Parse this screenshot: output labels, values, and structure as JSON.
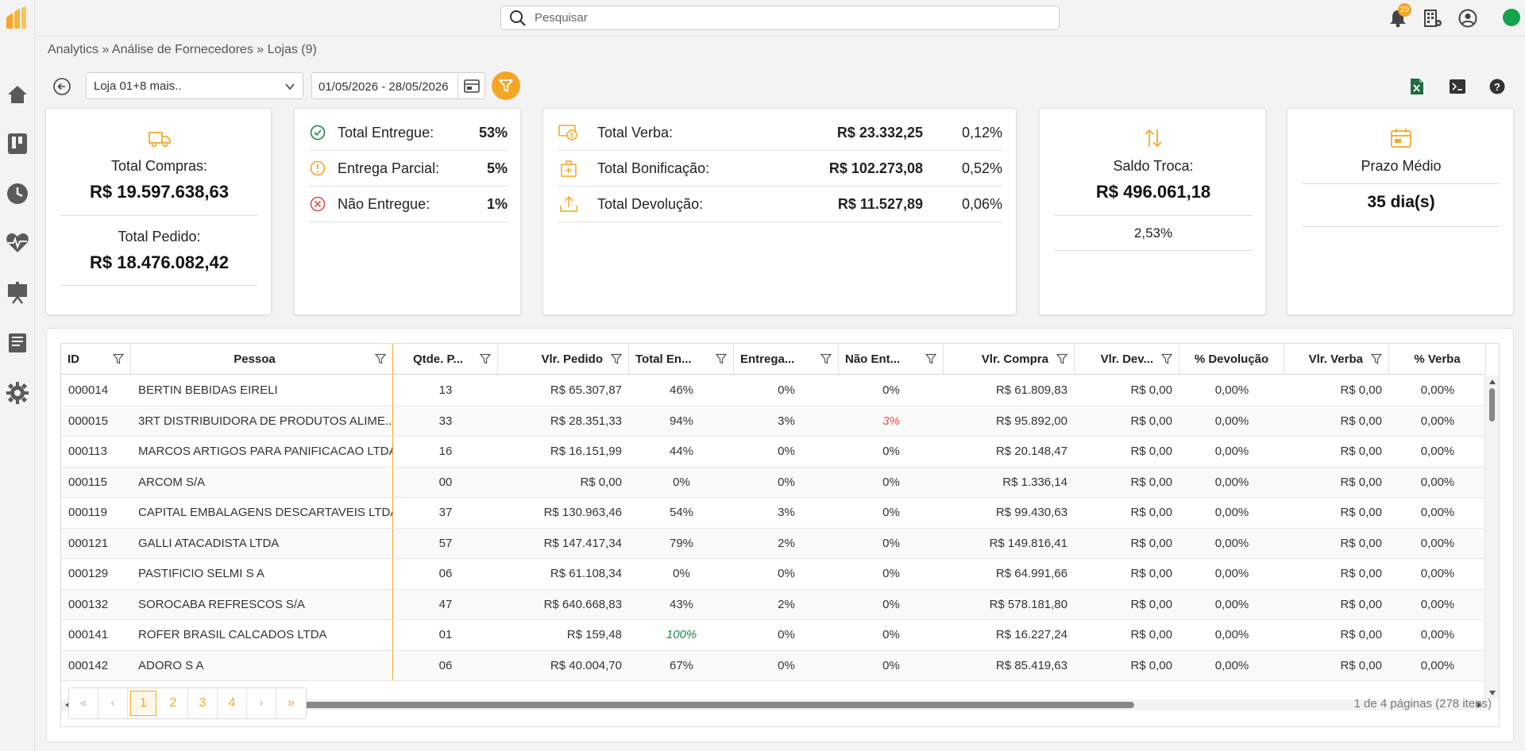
{
  "topbar": {
    "search_placeholder": "Pesquisar",
    "notifications_count": "29"
  },
  "breadcrumb": "Analytics » Análise de Fornecedores » Lojas (9)",
  "filters": {
    "store": "Loja 01+8 mais..",
    "date_range": "01/05/2026 - 28/05/2026"
  },
  "cards": {
    "compras": {
      "total_compras_label": "Total Compras:",
      "total_compras_value": "R$ 19.597.638,63",
      "total_pedido_label": "Total Pedido:",
      "total_pedido_value": "R$ 18.476.082,42"
    },
    "entregas": [
      {
        "label": "Total Entregue:",
        "value": "53%",
        "icon": "check-circle-icon"
      },
      {
        "label": "Entrega Parcial:",
        "value": "5%",
        "icon": "exclamation-circle-icon"
      },
      {
        "label": "Não Entregue:",
        "value": "1%",
        "icon": "x-circle-icon"
      }
    ],
    "verbas": [
      {
        "label": "Total Verba:",
        "value": "R$ 23.332,25",
        "pct": "0,12%",
        "icon": "money-icon"
      },
      {
        "label": "Total Bonificação:",
        "value": "R$ 102.273,08",
        "pct": "0,52%",
        "icon": "gift-box-icon"
      },
      {
        "label": "Total Devolução:",
        "value": "R$ 11.527,89",
        "pct": "0,06%",
        "icon": "upload-icon"
      }
    ],
    "troca": {
      "label": "Saldo Troca:",
      "value": "R$ 496.061,18",
      "pct": "2,53%"
    },
    "prazo": {
      "label": "Prazo Médio",
      "value": "35 dia(s)"
    }
  },
  "grid": {
    "columns": [
      "ID",
      "Pessoa",
      "Qtde. P...",
      "Vlr. Pedido",
      "Total En...",
      "Entrega...",
      "Não Ent...",
      "Vlr. Compra",
      "Vlr. Dev...",
      "% Devolução",
      "Vlr. Verba",
      "% Verba"
    ],
    "rows": [
      [
        "000014",
        "BERTIN BEBIDAS EIRELI",
        "13",
        "R$ 65.307,87",
        "46%",
        "0%",
        "0%",
        "R$ 61.809,83",
        "R$ 0,00",
        "0,00%",
        "R$ 0,00",
        "0,00%"
      ],
      [
        "000015",
        "3RT DISTRIBUIDORA DE PRODUTOS ALIME...",
        "33",
        "R$ 28.351,33",
        "94%",
        "3%",
        "3%",
        "R$ 95.892,00",
        "R$ 0,00",
        "0,00%",
        "R$ 0,00",
        "0,00%"
      ],
      [
        "000113",
        "MARCOS ARTIGOS PARA PANIFICACAO LTDA.",
        "16",
        "R$ 16.151,99",
        "44%",
        "0%",
        "0%",
        "R$ 20.148,47",
        "R$ 0,00",
        "0,00%",
        "R$ 0,00",
        "0,00%"
      ],
      [
        "000115",
        "ARCOM S/A",
        "00",
        "R$ 0,00",
        "0%",
        "0%",
        "0%",
        "R$ 1.336,14",
        "R$ 0,00",
        "0,00%",
        "R$ 0,00",
        "0,00%"
      ],
      [
        "000119",
        "CAPITAL EMBALAGENS DESCARTAVEIS LTDA",
        "37",
        "R$ 130.963,46",
        "54%",
        "3%",
        "0%",
        "R$ 99.430,63",
        "R$ 0,00",
        "0,00%",
        "R$ 0,00",
        "0,00%"
      ],
      [
        "000121",
        "GALLI ATACADISTA LTDA",
        "57",
        "R$ 147.417,34",
        "79%",
        "2%",
        "0%",
        "R$ 149.816,41",
        "R$ 0,00",
        "0,00%",
        "R$ 0,00",
        "0,00%"
      ],
      [
        "000129",
        "PASTIFICIO SELMI S A",
        "06",
        "R$ 61.108,34",
        "0%",
        "0%",
        "0%",
        "R$ 64.991,66",
        "R$ 0,00",
        "0,00%",
        "R$ 0,00",
        "0,00%"
      ],
      [
        "000132",
        "SOROCABA REFRESCOS S/A",
        "47",
        "R$ 640.668,83",
        "43%",
        "2%",
        "0%",
        "R$ 578.181,80",
        "R$ 0,00",
        "0,00%",
        "R$ 0,00",
        "0,00%"
      ],
      [
        "000141",
        "ROFER BRASIL CALCADOS LTDA",
        "01",
        "R$ 159,48",
        "100%",
        "0%",
        "0%",
        "R$ 16.227,24",
        "R$ 0,00",
        "0,00%",
        "R$ 0,00",
        "0,00%"
      ],
      [
        "000142",
        "ADORO S A",
        "06",
        "R$ 40.004,70",
        "67%",
        "0%",
        "0%",
        "R$ 85.419,63",
        "R$ 0,00",
        "0,00%",
        "R$ 0,00",
        "0,00%"
      ]
    ]
  },
  "pager": {
    "first": "«",
    "prev": "‹",
    "pages": [
      "1",
      "2",
      "3",
      "4"
    ],
    "next": "›",
    "last": "»",
    "info": "1 de 4 páginas (278 itens)"
  },
  "colors": {
    "accent": "#f5a623",
    "online": "#14a44d",
    "excel": "#1d6f42"
  }
}
